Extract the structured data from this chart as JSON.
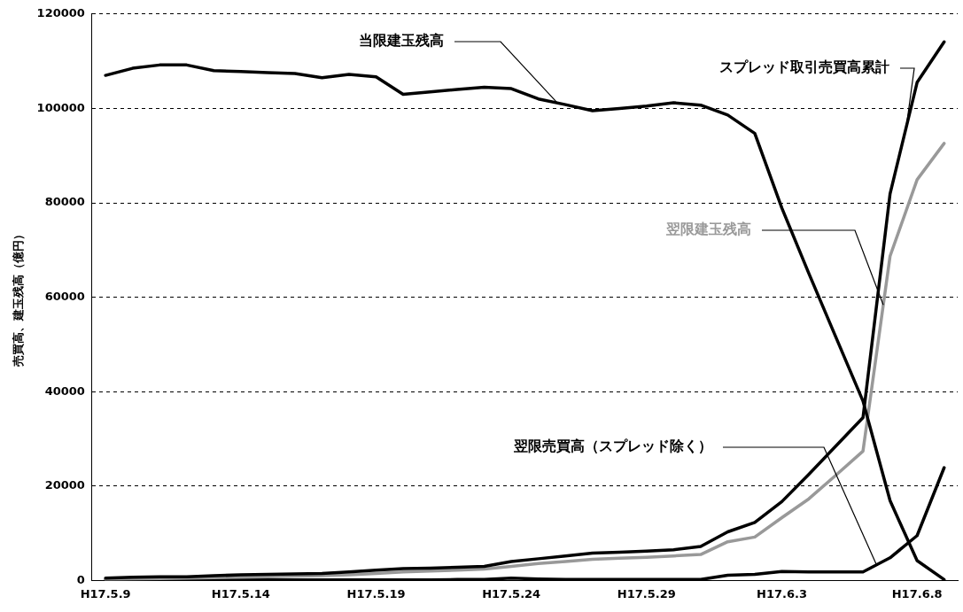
{
  "chart_data": {
    "type": "line",
    "ylabel": "売買高、建玉残高（億円）",
    "categories": [
      "H17.5.9",
      null,
      null,
      null,
      null,
      "H17.5.14",
      null,
      null,
      null,
      null,
      "H17.5.19",
      null,
      null,
      null,
      null,
      "H17.5.24",
      null,
      null,
      null,
      null,
      "H17.5.29",
      null,
      null,
      null,
      null,
      "H17.6.3",
      null,
      null,
      null,
      null,
      "H17.6.8",
      null
    ],
    "series": [
      {
        "name": "当限建玉残高",
        "color": "#000000",
        "values": [
          107000,
          108500,
          109200,
          109200,
          108000,
          107800,
          107600,
          107400,
          106500,
          107200,
          106700,
          103000,
          103500,
          104000,
          104500,
          104200,
          102000,
          100800,
          99500,
          100000,
          100500,
          101200,
          100700,
          98600,
          94700,
          78900,
          65000,
          51500,
          38000,
          16900,
          4200,
          200
        ]
      },
      {
        "name": "スプレッド取引売買高累計",
        "color": "#000000",
        "values": [
          500,
          700,
          800,
          800,
          1000,
          1200,
          1300,
          1400,
          1500,
          1800,
          2200,
          2500,
          2600,
          2800,
          3000,
          4000,
          4600,
          5200,
          5800,
          6000,
          6200,
          6500,
          7200,
          10300,
          12300,
          16700,
          22500,
          28500,
          34500,
          81900,
          105500,
          114100
        ]
      },
      {
        "name": "翌限建玉残高",
        "color": "#999999",
        "values": [
          200,
          300,
          400,
          500,
          600,
          700,
          800,
          900,
          1000,
          1200,
          1500,
          1800,
          2000,
          2200,
          2400,
          3000,
          3600,
          4000,
          4500,
          4700,
          4900,
          5200,
          5500,
          8200,
          9200,
          13300,
          17300,
          22300,
          27400,
          68700,
          84900,
          92600
        ]
      },
      {
        "name": "翌限売買高（スプレッド除く）",
        "color": "#000000",
        "values": [
          100,
          100,
          100,
          100,
          100,
          100,
          100,
          100,
          100,
          100,
          100,
          100,
          100,
          200,
          200,
          500,
          300,
          200,
          200,
          200,
          200,
          200,
          200,
          1100,
          1300,
          1900,
          1800,
          1800,
          1800,
          4800,
          9500,
          23900
        ]
      }
    ],
    "ylim": [
      0,
      120000
    ],
    "yticks": [
      0,
      20000,
      40000,
      60000,
      80000,
      100000,
      120000
    ],
    "grid": "y",
    "legend": false,
    "marker": "none",
    "line_style": "solid"
  }
}
